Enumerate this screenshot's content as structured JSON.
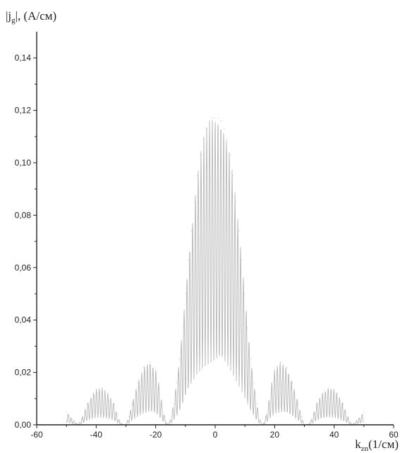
{
  "chart_data": {
    "type": "line",
    "title": "",
    "ylabel": {
      "prefix": "|j",
      "subscript": "g",
      "suffix": "|, (A/см)"
    },
    "xlabel": {
      "prefix": "k",
      "subscript": "zn",
      "suffix": "(1/см)"
    },
    "xlim": [
      -60,
      60
    ],
    "ylim": [
      0,
      0.15
    ],
    "xticks": [
      {
        "value": -60,
        "label": "-60"
      },
      {
        "value": -40,
        "label": "-40"
      },
      {
        "value": -20,
        "label": "-20"
      },
      {
        "value": 0,
        "label": "0"
      },
      {
        "value": 20,
        "label": "20"
      },
      {
        "value": 40,
        "label": "40"
      },
      {
        "value": 60,
        "label": "60"
      }
    ],
    "yticks": [
      {
        "value": 0.0,
        "label": "0,00"
      },
      {
        "value": 0.02,
        "label": "0,02"
      },
      {
        "value": 0.04,
        "label": "0,04"
      },
      {
        "value": 0.06,
        "label": "0,06"
      },
      {
        "value": 0.08,
        "label": "0,08"
      },
      {
        "value": 0.1,
        "label": "0,10"
      },
      {
        "value": 0.12,
        "label": "0,12"
      },
      {
        "value": 0.14,
        "label": "0,14"
      }
    ],
    "series": [
      {
        "color": "#bdbdbd",
        "x": [
          -50,
          -48,
          -46,
          -45,
          -43,
          -41,
          -40,
          -38,
          -36,
          -34,
          -33,
          -32,
          -31,
          -30,
          -29,
          -28,
          -26,
          -24,
          -22,
          -20,
          -19,
          -18,
          -17,
          -16,
          -15,
          -14,
          -13,
          -12,
          -11,
          -10,
          -9,
          -8,
          -7,
          -6,
          -5,
          -4,
          -3,
          -2,
          -1,
          0,
          1,
          2,
          3,
          4,
          5,
          6,
          7,
          8,
          9,
          10,
          11,
          12,
          13,
          14,
          15,
          16,
          17,
          18,
          19,
          20,
          22,
          24,
          26,
          28,
          29,
          30,
          31,
          32,
          33,
          34,
          36,
          38,
          40,
          41,
          43,
          45,
          46,
          48,
          50
        ],
        "y": [
          0.005,
          0.002,
          0.0,
          0.002,
          0.008,
          0.012,
          0.0135,
          0.014,
          0.012,
          0.008,
          0.004,
          0.001,
          0.0,
          0.0,
          0.003,
          0.008,
          0.016,
          0.022,
          0.024,
          0.021,
          0.016,
          0.009,
          0.003,
          0.0,
          0.002,
          0.008,
          0.016,
          0.025,
          0.037,
          0.05,
          0.063,
          0.074,
          0.085,
          0.095,
          0.103,
          0.109,
          0.113,
          0.116,
          0.117,
          0.117,
          0.117,
          0.116,
          0.113,
          0.109,
          0.103,
          0.095,
          0.085,
          0.074,
          0.063,
          0.05,
          0.037,
          0.025,
          0.016,
          0.008,
          0.002,
          0.0,
          0.003,
          0.009,
          0.016,
          0.021,
          0.024,
          0.022,
          0.016,
          0.008,
          0.003,
          0.0,
          0.0,
          0.001,
          0.004,
          0.008,
          0.012,
          0.014,
          0.0135,
          0.012,
          0.008,
          0.002,
          0.0,
          0.002,
          0.005
        ]
      }
    ]
  }
}
